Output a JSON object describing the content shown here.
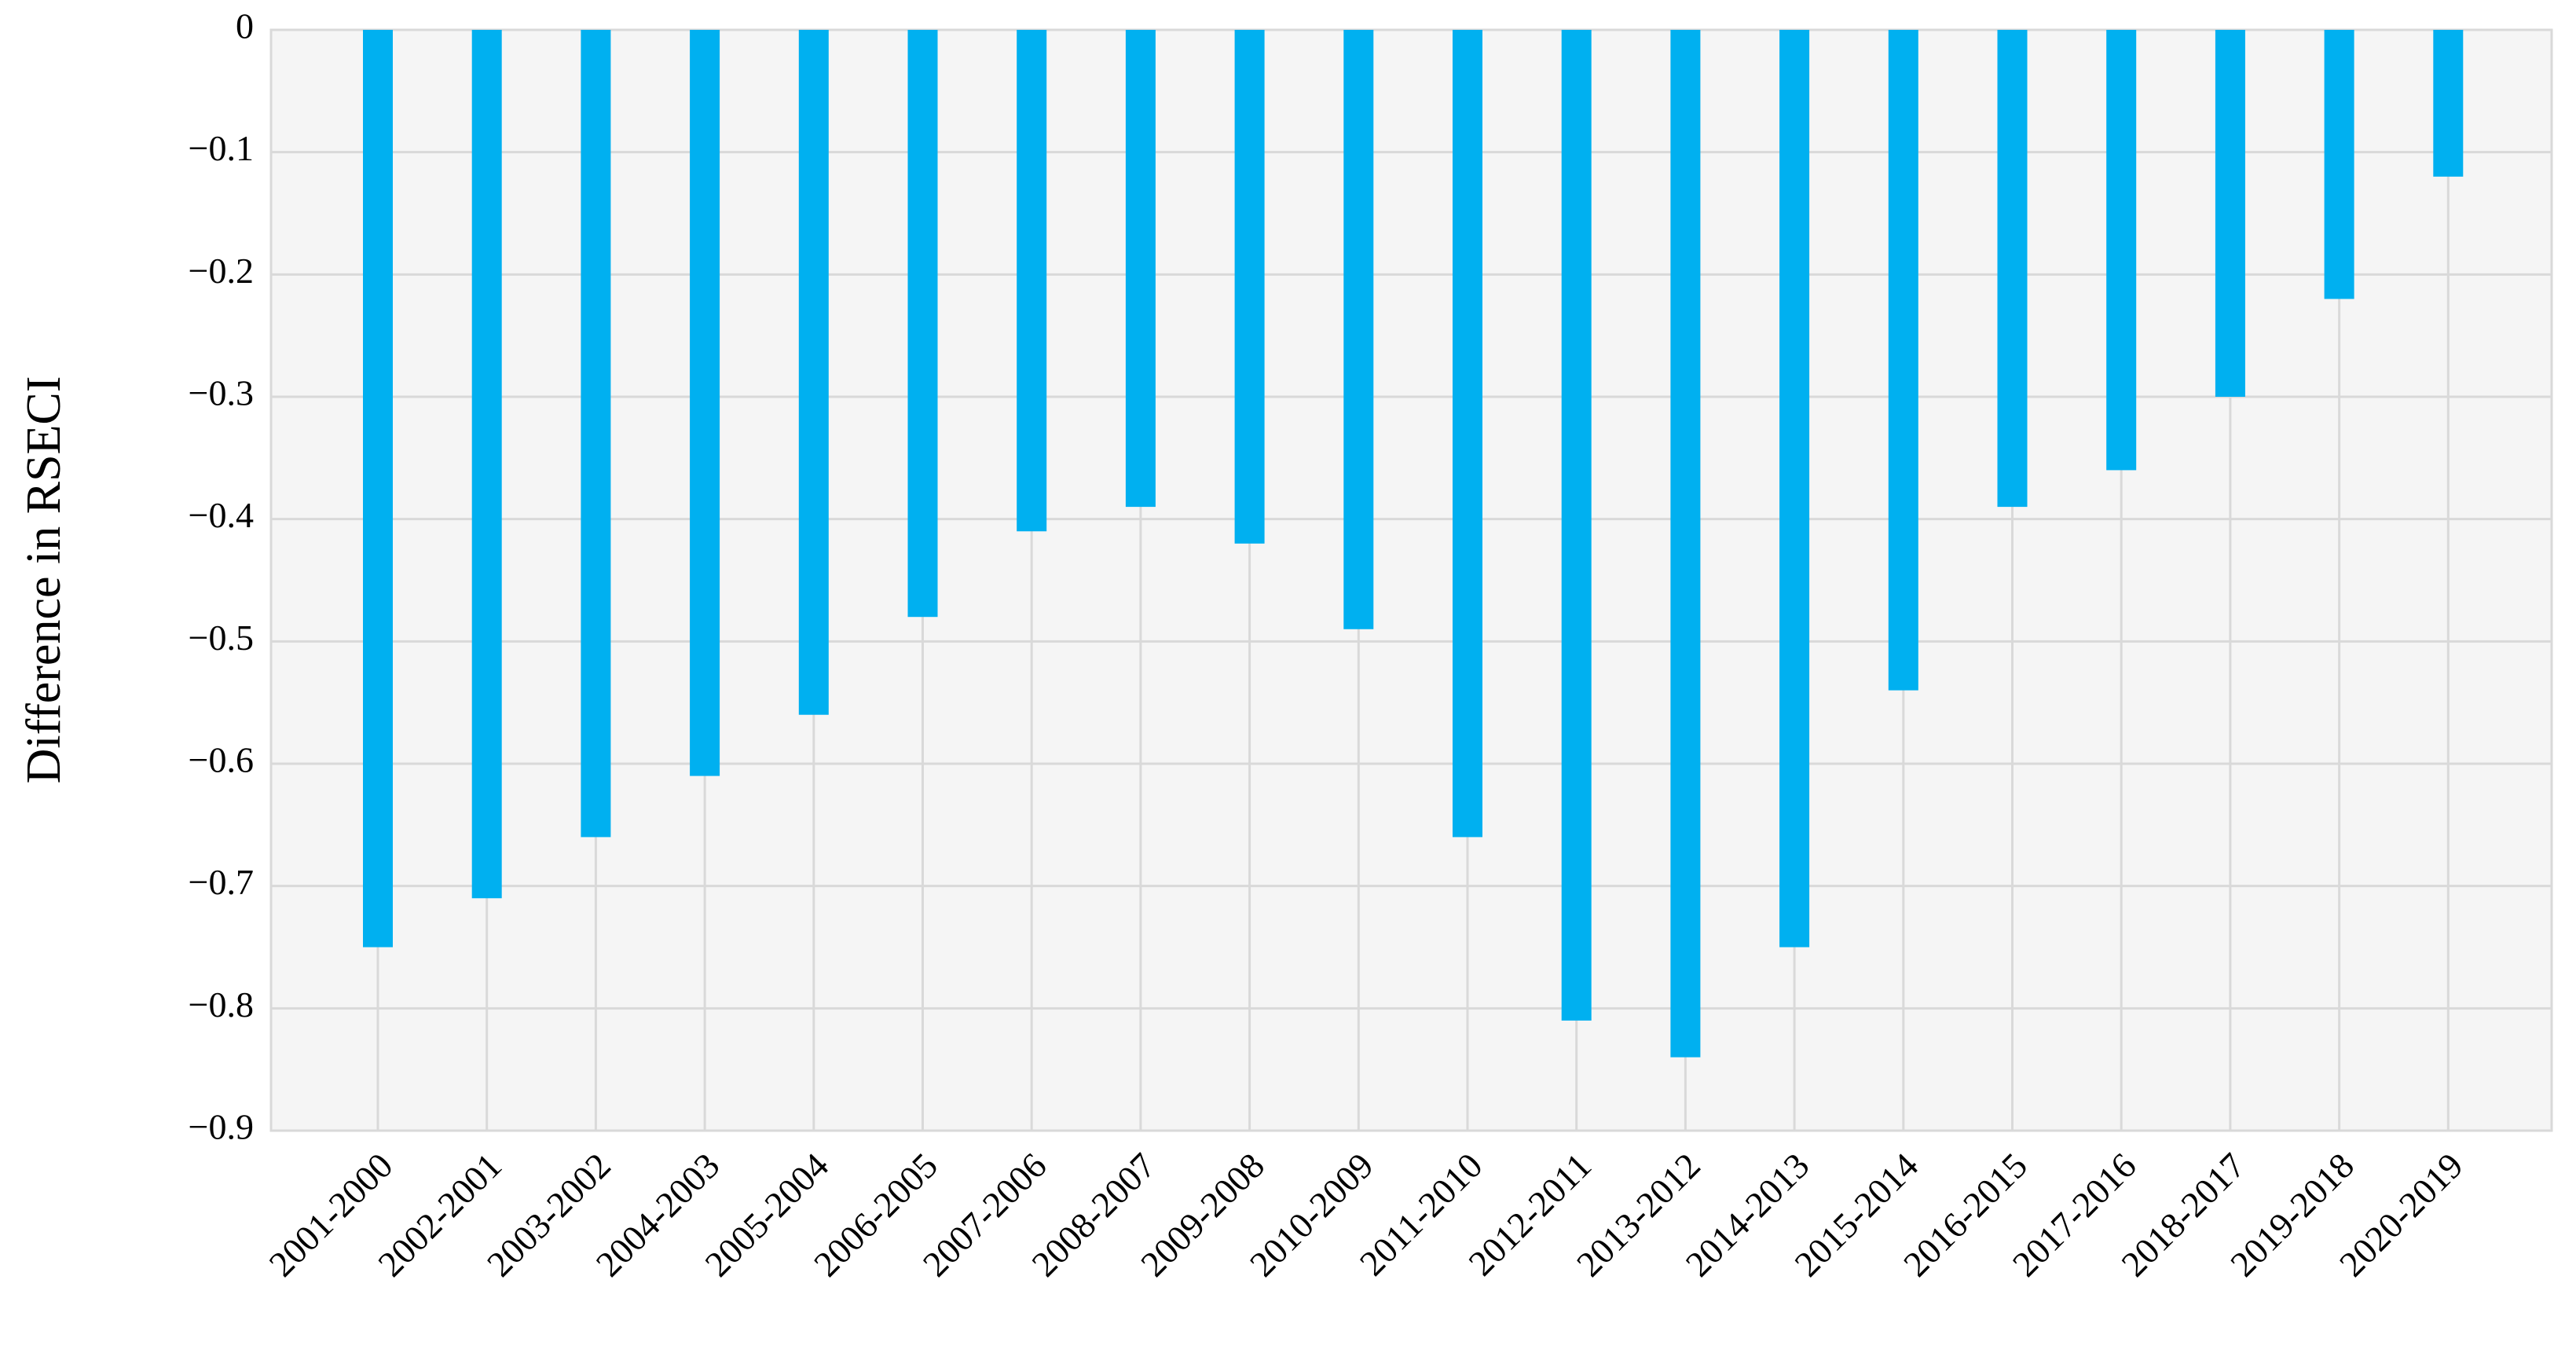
{
  "chart_data": {
    "type": "bar",
    "y_label": "Difference in RSECI",
    "categories": [
      "2001-2000",
      "2002-2001",
      "2003-2002",
      "2004-2003",
      "2005-2004",
      "2006-2005",
      "2007-2006",
      "2008-2007",
      "2009-2008",
      "2010-2009",
      "2011-2010",
      "2012-2011",
      "2013-2012",
      "2014-2013",
      "2015-2014",
      "2016-2015",
      "2017-2016",
      "2018-2017",
      "2019-2018",
      "2020-2019"
    ],
    "values": [
      -0.75,
      -0.71,
      -0.66,
      -0.61,
      -0.56,
      -0.48,
      -0.41,
      -0.39,
      -0.42,
      -0.49,
      -0.66,
      -0.81,
      -0.84,
      -0.75,
      -0.54,
      -0.39,
      -0.36,
      -0.3,
      -0.22,
      -0.12
    ],
    "color": "#00b0f0",
    "ylim": [
      -0.9,
      0
    ],
    "yticks": [
      0,
      {
        "value": -0.1,
        "label": "−0.1"
      },
      {
        "value": -0.2,
        "label": "−0.2"
      },
      {
        "value": -0.3,
        "label": "−0.3"
      },
      {
        "value": -0.4,
        "label": "−0.4"
      },
      {
        "value": -0.5,
        "label": "−0.5"
      },
      {
        "value": -0.6,
        "label": "−0.6"
      },
      {
        "value": -0.7,
        "label": "−0.7"
      },
      {
        "value": -0.8,
        "label": "−0.8"
      },
      {
        "value": -0.9,
        "label": "−0.9"
      }
    ],
    "grid": true
  }
}
